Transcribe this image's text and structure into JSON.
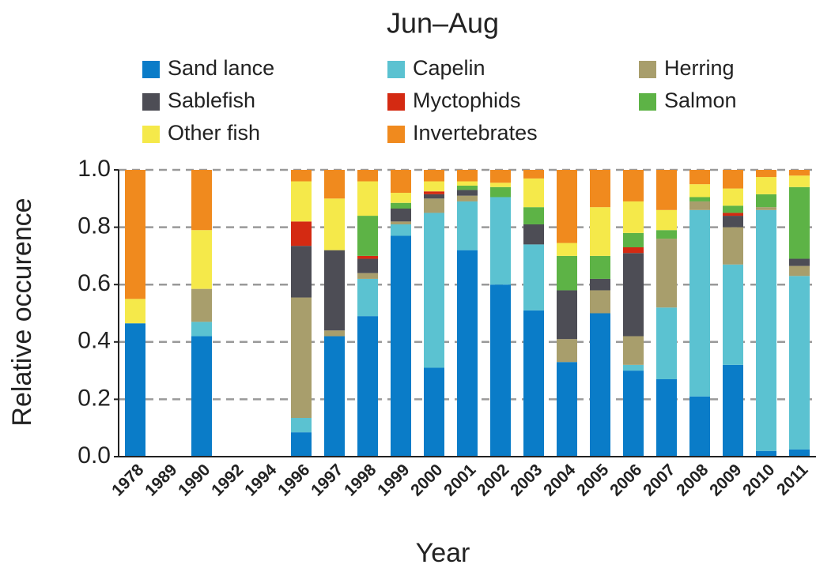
{
  "chart_data": {
    "type": "stacked_bar",
    "title": "Jun–Aug",
    "x_label": "Year",
    "y_label": "Relative occurence",
    "categories": [
      "1978",
      "1989",
      "1990",
      "1992",
      "1994",
      "1996",
      "1997",
      "1998",
      "1999",
      "2000",
      "2001",
      "2002",
      "2003",
      "2004",
      "2005",
      "2006",
      "2007",
      "2008",
      "2009",
      "2010",
      "2011"
    ],
    "series": [
      {
        "name": "Sand lance",
        "color": "#0a7cc8",
        "values": [
          0.465,
          0,
          0.42,
          0,
          0,
          0.085,
          0.42,
          0.49,
          0.77,
          0.31,
          0.72,
          0.6,
          0.51,
          0.33,
          0.5,
          0.3,
          0.27,
          0.21,
          0.32,
          0.02,
          0.025
        ]
      },
      {
        "name": "Capelin",
        "color": "#5bc2d1",
        "values": [
          0,
          0,
          0.05,
          0,
          0,
          0.05,
          0,
          0.13,
          0.04,
          0.54,
          0.17,
          0.305,
          0.23,
          0,
          0,
          0.02,
          0.25,
          0.65,
          0.35,
          0.84,
          0.605
        ]
      },
      {
        "name": "Herring",
        "color": "#a89e6c",
        "values": [
          0,
          0,
          0.115,
          0,
          0,
          0.42,
          0.02,
          0.02,
          0.01,
          0.05,
          0.02,
          0,
          0,
          0.08,
          0.08,
          0.1,
          0.24,
          0.03,
          0.13,
          0.01,
          0.035
        ]
      },
      {
        "name": "Sablefish",
        "color": "#4d4d55",
        "values": [
          0,
          0,
          0,
          0,
          0,
          0.18,
          0.28,
          0.05,
          0.045,
          0.015,
          0.02,
          0,
          0.07,
          0.17,
          0.04,
          0.29,
          0,
          0,
          0.04,
          0,
          0.025
        ]
      },
      {
        "name": "Myctophids",
        "color": "#d42a12",
        "values": [
          0,
          0,
          0,
          0,
          0,
          0.085,
          0,
          0.01,
          0,
          0.01,
          0,
          0,
          0,
          0,
          0,
          0.02,
          0,
          0,
          0.01,
          0,
          0
        ]
      },
      {
        "name": "Salmon",
        "color": "#5db346",
        "values": [
          0,
          0,
          0,
          0,
          0,
          0,
          0,
          0.14,
          0.02,
          0,
          0.015,
          0.035,
          0.06,
          0.12,
          0.08,
          0.05,
          0.03,
          0.015,
          0.025,
          0.045,
          0.25
        ]
      },
      {
        "name": "Other fish",
        "color": "#f5e94a",
        "values": [
          0.085,
          0,
          0.205,
          0,
          0,
          0.14,
          0.18,
          0.12,
          0.035,
          0.035,
          0.015,
          0.015,
          0.1,
          0.045,
          0.17,
          0.11,
          0.07,
          0.045,
          0.06,
          0.06,
          0.04
        ]
      },
      {
        "name": "Invertebrates",
        "color": "#f08a1e",
        "values": [
          0.45,
          0,
          0.21,
          0,
          0,
          0.04,
          0.1,
          0.04,
          0.08,
          0.04,
          0.04,
          0.045,
          0.03,
          0.255,
          0.13,
          0.11,
          0.14,
          0.05,
          0.065,
          0.025,
          0.02
        ]
      }
    ],
    "ylim": [
      0,
      1
    ],
    "yticks": [
      {
        "value": 0,
        "label": "0.0"
      },
      0.2,
      0.4,
      0.6,
      0.8,
      {
        "value": 1,
        "label": "1.0"
      }
    ],
    "grid": true
  }
}
